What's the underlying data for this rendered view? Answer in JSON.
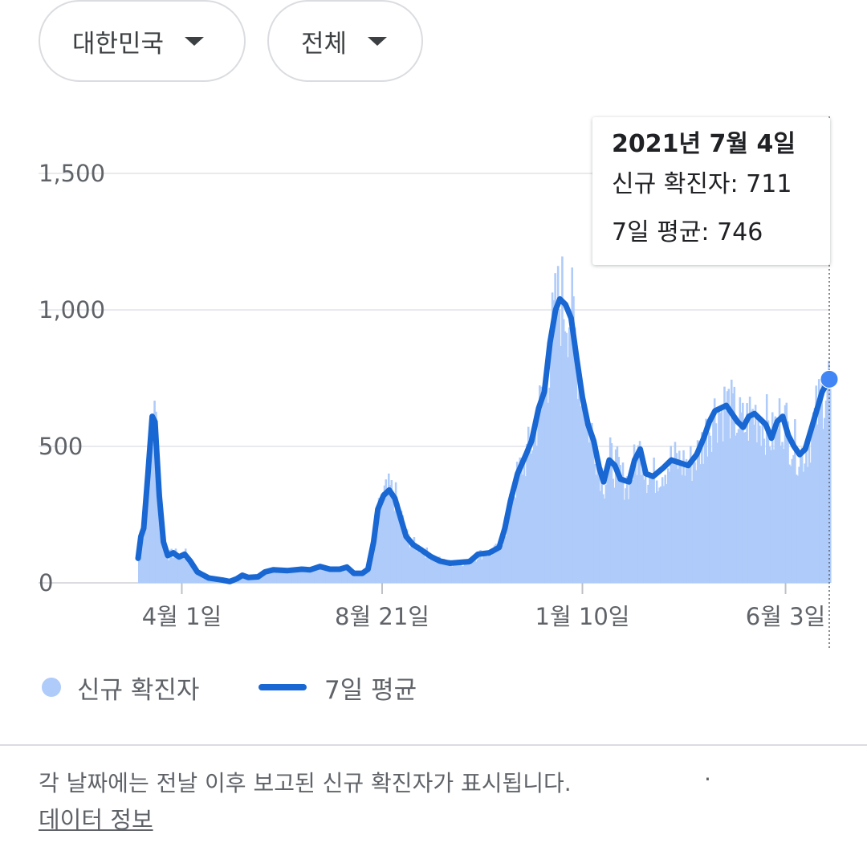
{
  "filters": {
    "region": {
      "selected": "대한민국",
      "icon": "arrow-drop-down-icon"
    },
    "scope": {
      "selected": "전체",
      "icon": "arrow-drop-down-icon"
    }
  },
  "tooltip": {
    "date": "2021년 7월 4일",
    "new_cases_label": "신규 확진자: 711",
    "avg_label": "7일 평균: 746"
  },
  "legend": {
    "bars": "신규 확진자",
    "line": "7일 평균"
  },
  "footer": {
    "note": "각 날짜에는 전날 이후 보고된 신규 확진자가 표시됩니다.",
    "separator": "·",
    "link": "데이터 정보"
  },
  "colors": {
    "bars": "#aecbfa",
    "line": "#1967d2",
    "marker": "#4285f4",
    "grid": "#e8eaed"
  },
  "chart_data": {
    "type": "bar",
    "ylim": [
      0,
      1500
    ],
    "yticks": [
      {
        "value": 0,
        "label": "0"
      },
      {
        "value": 500,
        "label": "500"
      },
      {
        "value": 1000,
        "label": "1,000"
      },
      {
        "value": 1500,
        "label": "1,500"
      }
    ],
    "xticks": [
      {
        "date": "2020-04-01",
        "label": "4월 1일"
      },
      {
        "date": "2020-08-21",
        "label": "8월 21일"
      },
      {
        "date": "2021-01-10",
        "label": "1월 10일"
      },
      {
        "date": "2021-06-03",
        "label": "6월 3일"
      }
    ],
    "x_start": "2020-03-01",
    "x_end": "2021-07-04",
    "highlight": {
      "date": "2021-07-04",
      "new_cases": 711,
      "avg": 746
    },
    "series": [
      {
        "name": "7일 평균",
        "type": "line",
        "points": [
          [
            "2020-03-01",
            90
          ],
          [
            "2020-03-03",
            170
          ],
          [
            "2020-03-05",
            200
          ],
          [
            "2020-03-08",
            400
          ],
          [
            "2020-03-11",
            610
          ],
          [
            "2020-03-13",
            590
          ],
          [
            "2020-03-16",
            320
          ],
          [
            "2020-03-19",
            150
          ],
          [
            "2020-03-22",
            100
          ],
          [
            "2020-03-26",
            110
          ],
          [
            "2020-03-30",
            95
          ],
          [
            "2020-04-03",
            105
          ],
          [
            "2020-04-07",
            80
          ],
          [
            "2020-04-12",
            40
          ],
          [
            "2020-04-20",
            18
          ],
          [
            "2020-04-30",
            10
          ],
          [
            "2020-05-05",
            5
          ],
          [
            "2020-05-10",
            15
          ],
          [
            "2020-05-14",
            28
          ],
          [
            "2020-05-18",
            20
          ],
          [
            "2020-05-25",
            22
          ],
          [
            "2020-05-30",
            40
          ],
          [
            "2020-06-05",
            48
          ],
          [
            "2020-06-15",
            45
          ],
          [
            "2020-06-25",
            50
          ],
          [
            "2020-07-01",
            48
          ],
          [
            "2020-07-08",
            60
          ],
          [
            "2020-07-15",
            50
          ],
          [
            "2020-07-22",
            50
          ],
          [
            "2020-07-27",
            58
          ],
          [
            "2020-08-01",
            35
          ],
          [
            "2020-08-07",
            35
          ],
          [
            "2020-08-11",
            50
          ],
          [
            "2020-08-15",
            150
          ],
          [
            "2020-08-18",
            270
          ],
          [
            "2020-08-22",
            320
          ],
          [
            "2020-08-26",
            340
          ],
          [
            "2020-08-30",
            310
          ],
          [
            "2020-09-03",
            240
          ],
          [
            "2020-09-07",
            170
          ],
          [
            "2020-09-12",
            140
          ],
          [
            "2020-09-18",
            120
          ],
          [
            "2020-09-25",
            95
          ],
          [
            "2020-10-01",
            80
          ],
          [
            "2020-10-08",
            72
          ],
          [
            "2020-10-15",
            75
          ],
          [
            "2020-10-22",
            78
          ],
          [
            "2020-10-28",
            105
          ],
          [
            "2020-11-05",
            110
          ],
          [
            "2020-11-12",
            130
          ],
          [
            "2020-11-16",
            200
          ],
          [
            "2020-11-20",
            300
          ],
          [
            "2020-11-25",
            400
          ],
          [
            "2020-12-01",
            470
          ],
          [
            "2020-12-05",
            520
          ],
          [
            "2020-12-10",
            640
          ],
          [
            "2020-12-14",
            700
          ],
          [
            "2020-12-18",
            880
          ],
          [
            "2020-12-22",
            1000
          ],
          [
            "2020-12-25",
            1040
          ],
          [
            "2020-12-29",
            1020
          ],
          [
            "2021-01-02",
            970
          ],
          [
            "2021-01-06",
            820
          ],
          [
            "2021-01-10",
            680
          ],
          [
            "2021-01-14",
            580
          ],
          [
            "2021-01-18",
            520
          ],
          [
            "2021-01-22",
            420
          ],
          [
            "2021-01-25",
            370
          ],
          [
            "2021-01-29",
            450
          ],
          [
            "2021-02-02",
            430
          ],
          [
            "2021-02-06",
            380
          ],
          [
            "2021-02-12",
            370
          ],
          [
            "2021-02-16",
            450
          ],
          [
            "2021-02-20",
            490
          ],
          [
            "2021-02-24",
            400
          ],
          [
            "2021-03-01",
            390
          ],
          [
            "2021-03-08",
            420
          ],
          [
            "2021-03-14",
            450
          ],
          [
            "2021-03-20",
            440
          ],
          [
            "2021-03-26",
            430
          ],
          [
            "2021-04-01",
            470
          ],
          [
            "2021-04-06",
            530
          ],
          [
            "2021-04-10",
            590
          ],
          [
            "2021-04-14",
            630
          ],
          [
            "2021-04-18",
            640
          ],
          [
            "2021-04-22",
            650
          ],
          [
            "2021-04-26",
            620
          ],
          [
            "2021-04-30",
            590
          ],
          [
            "2021-05-04",
            570
          ],
          [
            "2021-05-08",
            610
          ],
          [
            "2021-05-12",
            620
          ],
          [
            "2021-05-16",
            600
          ],
          [
            "2021-05-20",
            580
          ],
          [
            "2021-05-24",
            530
          ],
          [
            "2021-05-28",
            590
          ],
          [
            "2021-06-01",
            610
          ],
          [
            "2021-06-05",
            540
          ],
          [
            "2021-06-09",
            500
          ],
          [
            "2021-06-13",
            470
          ],
          [
            "2021-06-17",
            490
          ],
          [
            "2021-06-21",
            560
          ],
          [
            "2021-06-25",
            630
          ],
          [
            "2021-06-29",
            700
          ],
          [
            "2021-07-04",
            746
          ]
        ]
      },
      {
        "name": "신규 확진자",
        "type": "bar",
        "note": "daily bars: average with ±20% day-to-day fluctuation"
      }
    ]
  }
}
